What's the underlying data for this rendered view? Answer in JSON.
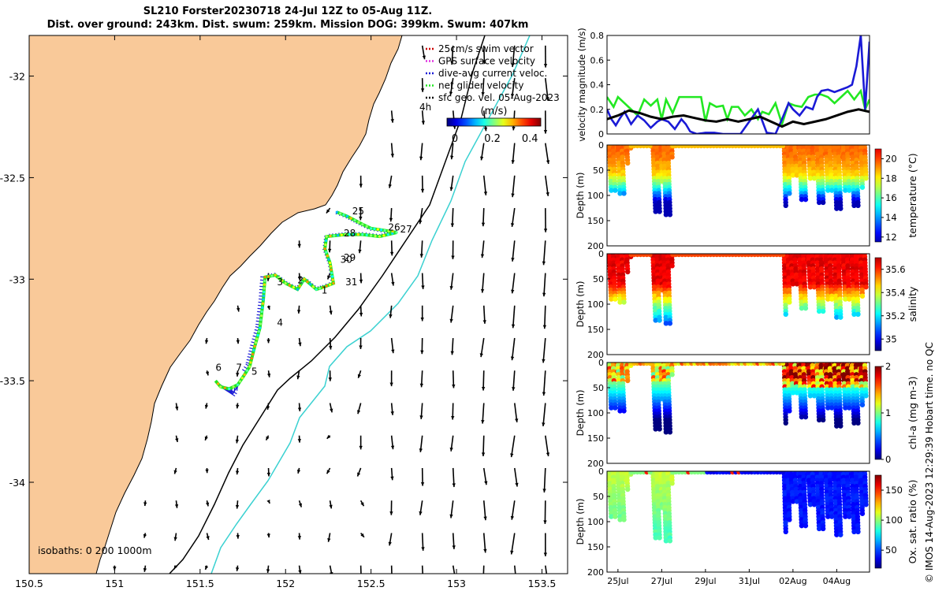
{
  "title": {
    "line1": "SL210 Forster20230718 24-Jul 12Z to 05-Aug 11Z.",
    "line2": "Dist. over ground: 243km. Dist. swum: 259km. Mission DOG: 399km. Swum: 407km"
  },
  "stamp": "© IMOS 14-Aug-2023 12:29:39 Hobart time. no QC",
  "colors": {
    "land": "#f9c999",
    "sea": "#ffffff",
    "current": "#3ad1d1",
    "gliderGreen": "#22e822",
    "gliderBlue": "#1a1ad6",
    "black": "#000000"
  },
  "chart_data": [
    {
      "type": "map",
      "x_ticks": [
        "150.5",
        "151",
        "151.5",
        "152",
        "152.5",
        "153",
        "153.5"
      ],
      "x_range": [
        150.5,
        153.65
      ],
      "y_ticks": [
        "-32",
        "-32.5",
        "-33",
        "-33.5",
        "-34"
      ],
      "y_range": [
        -34.45,
        -31.8
      ],
      "legend": [
        {
          "label": "25cm/s swim vector",
          "color": "#cc0000"
        },
        {
          "label": "GPS surface velocity",
          "color": "#e033e0"
        },
        {
          "label": "dive-avg current veloc.",
          "color": "#1a1ad6"
        },
        {
          "label": "net glider velocity",
          "color": "#22e822"
        },
        {
          "label": "sfc geo. vel. 05-Aug-2023",
          "color": "#000000"
        }
      ],
      "legend_extra": "4h",
      "colorbar": {
        "label": "(m/s)",
        "ticks": [
          "0",
          "0.2",
          "0.4"
        ],
        "range": [
          0,
          0.5
        ]
      },
      "isobaths_label": "isobaths: 0   200  1000m",
      "track_labels": [
        {
          "text": "1",
          "lon": 152.21,
          "lat": -33.07
        },
        {
          "text": "2",
          "lon": 152.07,
          "lat": -33.02
        },
        {
          "text": "3",
          "lon": 151.95,
          "lat": -33.03
        },
        {
          "text": "4",
          "lon": 151.95,
          "lat": -33.23
        },
        {
          "text": "5",
          "lon": 151.8,
          "lat": -33.47
        },
        {
          "text": "6",
          "lon": 151.59,
          "lat": -33.45
        },
        {
          "text": "7",
          "lon": 151.71,
          "lat": -33.45
        },
        {
          "text": "25",
          "lon": 152.39,
          "lat": -32.68
        },
        {
          "text": "26",
          "lon": 152.6,
          "lat": -32.76
        },
        {
          "text": "27",
          "lon": 152.67,
          "lat": -32.77
        },
        {
          "text": "28",
          "lon": 152.34,
          "lat": -32.79
        },
        {
          "text": "29",
          "lon": 152.34,
          "lat": -32.91
        },
        {
          "text": "30",
          "lon": 152.32,
          "lat": -32.92
        },
        {
          "text": "31",
          "lon": 152.35,
          "lat": -33.03
        }
      ],
      "track": [
        [
          152.3,
          -32.67
        ],
        [
          152.36,
          -32.69
        ],
        [
          152.45,
          -32.73
        ],
        [
          152.5,
          -32.75
        ],
        [
          152.58,
          -32.76
        ],
        [
          152.65,
          -32.77
        ],
        [
          152.55,
          -32.79
        ],
        [
          152.45,
          -32.78
        ],
        [
          152.35,
          -32.78
        ],
        [
          152.24,
          -32.79
        ],
        [
          152.23,
          -32.85
        ],
        [
          152.26,
          -32.92
        ],
        [
          152.27,
          -32.97
        ],
        [
          152.28,
          -33.02
        ],
        [
          152.22,
          -33.04
        ],
        [
          152.18,
          -33.05
        ],
        [
          152.11,
          -33.0
        ],
        [
          152.07,
          -33.05
        ],
        [
          152.0,
          -33.02
        ],
        [
          151.94,
          -32.98
        ],
        [
          151.88,
          -32.99
        ],
        [
          151.87,
          -33.1
        ],
        [
          151.85,
          -33.24
        ],
        [
          151.82,
          -33.33
        ],
        [
          151.79,
          -33.43
        ],
        [
          151.76,
          -33.47
        ],
        [
          151.72,
          -33.52
        ],
        [
          151.67,
          -33.54
        ],
        [
          151.62,
          -33.53
        ],
        [
          151.59,
          -33.5
        ]
      ]
    },
    {
      "type": "line",
      "ylabel": "velocity magnitude (m/s)",
      "y_ticks": [
        "0",
        "0.2",
        "0.4",
        "0.6",
        "0.8"
      ],
      "ylim": [
        0,
        0.8
      ],
      "xlim": [
        24.5,
        36.5
      ],
      "series": [
        {
          "color": "#22e822",
          "x": [
            24.5,
            24.8,
            25.0,
            25.3,
            25.6,
            25.9,
            26.2,
            26.5,
            26.8,
            27.0,
            27.2,
            27.5,
            27.8,
            28.0,
            28.4,
            28.8,
            29.0,
            29.2,
            29.5,
            29.8,
            30.0,
            30.2,
            30.5,
            30.8,
            31.1,
            31.4,
            31.6,
            31.9,
            32.2,
            32.5,
            32.8,
            33.1,
            33.4,
            33.7,
            34.0,
            34.3,
            34.6,
            34.9,
            35.2,
            35.5,
            35.8,
            36.1,
            36.3,
            36.5
          ],
          "y": [
            0.3,
            0.22,
            0.3,
            0.25,
            0.2,
            0.15,
            0.28,
            0.23,
            0.28,
            0.12,
            0.28,
            0.17,
            0.3,
            0.3,
            0.3,
            0.3,
            0.1,
            0.25,
            0.22,
            0.23,
            0.12,
            0.22,
            0.22,
            0.15,
            0.2,
            0.12,
            0.18,
            0.16,
            0.25,
            0.08,
            0.25,
            0.23,
            0.22,
            0.3,
            0.32,
            0.32,
            0.3,
            0.25,
            0.3,
            0.35,
            0.28,
            0.35,
            0.2,
            0.28
          ]
        },
        {
          "color": "#1a1ad6",
          "x": [
            24.5,
            24.7,
            24.9,
            25.1,
            25.3,
            25.6,
            25.9,
            26.2,
            26.5,
            26.8,
            27.0,
            27.3,
            27.6,
            27.9,
            28.1,
            28.3,
            28.6,
            29.0,
            29.4,
            29.8,
            30.2,
            30.6,
            31.0,
            31.2,
            31.4,
            31.8,
            32.2,
            32.5,
            32.8,
            33.0,
            33.3,
            33.6,
            33.9,
            34.1,
            34.3,
            34.6,
            34.9,
            35.2,
            35.5,
            35.7,
            35.9,
            36.1,
            36.3,
            36.5
          ],
          "y": [
            0.2,
            0.12,
            0.07,
            0.13,
            0.18,
            0.08,
            0.15,
            0.11,
            0.05,
            0.1,
            0.12,
            0.1,
            0.04,
            0.12,
            0.08,
            0.02,
            0.0,
            0.01,
            0.01,
            0.0,
            0.0,
            0.0,
            0.1,
            0.15,
            0.2,
            0.01,
            0.0,
            0.12,
            0.25,
            0.2,
            0.15,
            0.22,
            0.2,
            0.3,
            0.35,
            0.36,
            0.34,
            0.36,
            0.38,
            0.4,
            0.55,
            0.8,
            0.2,
            0.75
          ]
        },
        {
          "color": "#000000",
          "x": [
            24.5,
            25.0,
            25.5,
            26.0,
            26.5,
            27.0,
            27.5,
            28.0,
            28.5,
            29.0,
            29.5,
            30.0,
            30.5,
            31.0,
            31.5,
            32.0,
            32.5,
            33.0,
            33.5,
            34.0,
            34.5,
            35.0,
            35.5,
            36.0,
            36.5
          ],
          "y": [
            0.12,
            0.15,
            0.19,
            0.17,
            0.14,
            0.12,
            0.14,
            0.15,
            0.13,
            0.11,
            0.1,
            0.12,
            0.1,
            0.12,
            0.14,
            0.1,
            0.06,
            0.1,
            0.08,
            0.1,
            0.12,
            0.15,
            0.18,
            0.2,
            0.18
          ]
        }
      ]
    },
    {
      "type": "heatmap",
      "ylabel": "Depth (m)",
      "cbar_label": "temperature (°C)",
      "cbar_ticks": [
        "12",
        "14",
        "16",
        "18",
        "20"
      ],
      "cbar_range": [
        11.5,
        21
      ],
      "y_ticks": [
        "0",
        "50",
        "100",
        "150",
        "200"
      ],
      "ylim": [
        0,
        200
      ]
    },
    {
      "type": "heatmap",
      "ylabel": "Depth (m)",
      "cbar_label": "salinity",
      "cbar_ticks": [
        "35",
        "35.2",
        "35.4",
        "35.6"
      ],
      "cbar_range": [
        34.9,
        35.7
      ],
      "y_ticks": [
        "0",
        "50",
        "100",
        "150",
        "200"
      ],
      "ylim": [
        0,
        200
      ]
    },
    {
      "type": "heatmap",
      "ylabel": "Depth (m)",
      "cbar_label": "chl-a (mg m-3)",
      "cbar_ticks": [
        "0",
        "1",
        "2"
      ],
      "cbar_range": [
        0,
        2
      ],
      "y_ticks": [
        "0",
        "50",
        "100",
        "150",
        "200"
      ],
      "ylim": [
        0,
        200
      ]
    },
    {
      "type": "heatmap",
      "ylabel": "Depth (m)",
      "cbar_label": "Ox. sat. ratio (%)",
      "cbar_ticks": [
        "50",
        "100",
        "150"
      ],
      "cbar_range": [
        20,
        175
      ],
      "y_ticks": [
        "0",
        "50",
        "100",
        "150",
        "200"
      ],
      "ylim": [
        0,
        200
      ],
      "x_ticks": [
        "25Jul",
        "27Jul",
        "29Jul",
        "31Jul",
        "02Aug",
        "04Aug"
      ],
      "x_tick_days": [
        25,
        27,
        29,
        31,
        33,
        35
      ]
    }
  ]
}
